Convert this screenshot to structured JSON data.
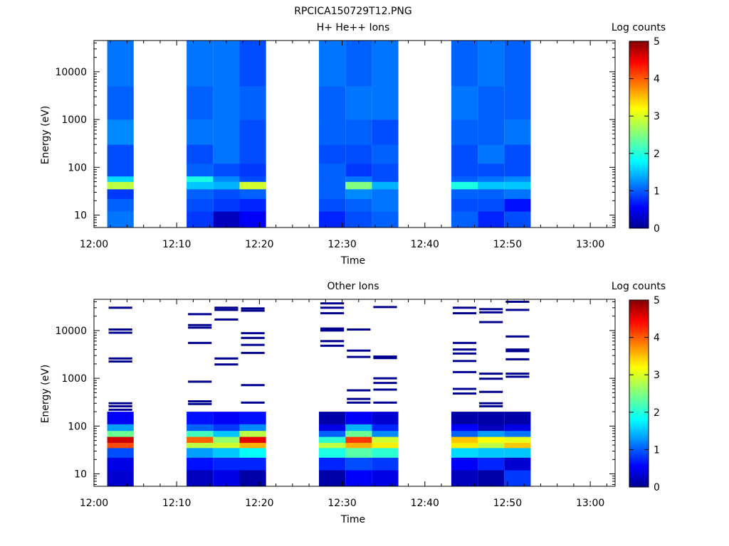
{
  "figure": {
    "title": "RPCICA150729T12.PNG"
  },
  "colorbar": {
    "label": "Log counts",
    "range": [
      0,
      5
    ],
    "ticks": [
      "0",
      "1",
      "2",
      "3",
      "4",
      "5"
    ],
    "colormap": "jet"
  },
  "axes": {
    "xlabel": "Time",
    "ylabel": "Energy (eV)",
    "x_range_minutes": [
      0,
      63
    ],
    "x_ticks": [
      {
        "minute": 0,
        "label": "12:00"
      },
      {
        "minute": 10,
        "label": "12:10"
      },
      {
        "minute": 20,
        "label": "12:20"
      },
      {
        "minute": 30,
        "label": "12:30"
      },
      {
        "minute": 40,
        "label": "12:40"
      },
      {
        "minute": 50,
        "label": "12:50"
      },
      {
        "minute": 60,
        "label": "13:00"
      }
    ],
    "y_scale": "log",
    "y_range_eV": [
      5.5,
      45000
    ],
    "y_ticks": [
      {
        "value": 10,
        "label": "10"
      },
      {
        "value": 100,
        "label": "100"
      },
      {
        "value": 1000,
        "label": "1000"
      },
      {
        "value": 10000,
        "label": "10000"
      }
    ]
  },
  "chart_data": [
    {
      "type": "heatmap",
      "title": "H+ He++ Ions",
      "xlabel": "Time",
      "ylabel": "Energy (eV)",
      "colorbar_label": "Log counts",
      "value_range": [
        0,
        5
      ],
      "columns_minutes": [
        [
          1.6,
          4.8
        ],
        [
          11.2,
          14.4
        ],
        [
          14.4,
          17.6
        ],
        [
          17.6,
          20.8
        ],
        [
          27.2,
          30.4
        ],
        [
          30.4,
          33.6
        ],
        [
          33.6,
          36.8
        ],
        [
          43.2,
          46.4
        ],
        [
          46.4,
          49.6
        ],
        [
          49.6,
          52.8
        ]
      ],
      "energy_bins_eV": [
        [
          5.5,
          12
        ],
        [
          12,
          22
        ],
        [
          22,
          35
        ],
        [
          35,
          50
        ],
        [
          50,
          65
        ],
        [
          65,
          120
        ],
        [
          120,
          300
        ],
        [
          300,
          1000
        ],
        [
          1000,
          5000
        ],
        [
          5000,
          45000
        ]
      ],
      "values": [
        [
          1.2,
          1.1,
          0.9,
          2.8,
          1.7,
          1.0,
          1.0,
          1.3,
          1.1,
          1.2
        ],
        [
          0.9,
          1.0,
          1.1,
          1.6,
          2.0,
          1.1,
          1.0,
          1.2,
          1.1,
          1.2
        ],
        [
          0.3,
          0.9,
          1.0,
          1.5,
          1.3,
          1.0,
          1.2,
          1.2,
          1.2,
          1.2
        ],
        [
          0.6,
          0.8,
          1.1,
          2.9,
          1.0,
          0.9,
          1.0,
          1.0,
          1.1,
          1.0
        ],
        [
          0.8,
          1.0,
          1.1,
          1.1,
          1.1,
          1.1,
          1.0,
          1.1,
          1.1,
          1.2
        ],
        [
          1.0,
          1.1,
          1.3,
          2.5,
          1.2,
          0.9,
          1.0,
          1.1,
          1.2,
          1.1
        ],
        [
          1.1,
          1.2,
          1.2,
          1.5,
          1.0,
          1.0,
          1.1,
          1.0,
          1.2,
          1.2
        ],
        [
          1.1,
          1.0,
          1.1,
          2.0,
          1.1,
          1.0,
          1.0,
          1.1,
          1.2,
          1.1
        ],
        [
          0.8,
          1.0,
          1.1,
          1.6,
          1.2,
          1.0,
          1.2,
          1.1,
          1.1,
          1.2
        ],
        [
          1.0,
          0.7,
          1.2,
          1.6,
          1.3,
          1.0,
          1.0,
          1.2,
          1.1,
          1.1
        ]
      ]
    },
    {
      "type": "heatmap",
      "title": "Other Ions",
      "xlabel": "Time",
      "ylabel": "Energy (eV)",
      "colorbar_label": "Log counts",
      "value_range": [
        0,
        5
      ],
      "columns_minutes": [
        [
          1.6,
          4.8
        ],
        [
          11.2,
          14.4
        ],
        [
          14.4,
          17.6
        ],
        [
          17.6,
          20.8
        ],
        [
          27.2,
          30.4
        ],
        [
          30.4,
          33.6
        ],
        [
          33.6,
          36.8
        ],
        [
          43.2,
          46.4
        ],
        [
          46.4,
          49.6
        ],
        [
          49.6,
          52.8
        ]
      ],
      "energy_bins_eV": [
        [
          5.5,
          12
        ],
        [
          12,
          22
        ],
        [
          22,
          35
        ],
        [
          35,
          45
        ],
        [
          45,
          60
        ],
        [
          60,
          80
        ],
        [
          80,
          110
        ],
        [
          110,
          200
        ]
      ],
      "values": [
        [
          0.4,
          0.5,
          1.0,
          4.0,
          4.6,
          2.4,
          1.4,
          0.6
        ],
        [
          0.3,
          0.7,
          1.4,
          2.8,
          3.9,
          2.2,
          1.1,
          0.7
        ],
        [
          0.5,
          0.8,
          1.6,
          2.9,
          2.6,
          1.6,
          0.9,
          0.6
        ],
        [
          0.2,
          0.8,
          1.9,
          3.5,
          4.5,
          2.8,
          1.3,
          0.7
        ],
        [
          0.2,
          0.8,
          2.0,
          2.8,
          2.1,
          1.1,
          0.5,
          0.2
        ],
        [
          0.6,
          1.0,
          2.3,
          3.5,
          4.1,
          2.4,
          1.5,
          0.6
        ],
        [
          0.5,
          0.9,
          2.1,
          3.2,
          2.9,
          1.3,
          0.8,
          0.4
        ],
        [
          0.3,
          0.6,
          1.7,
          3.2,
          3.4,
          1.1,
          0.6,
          0.2
        ],
        [
          0.2,
          0.8,
          1.6,
          2.8,
          3.1,
          1.4,
          0.3,
          0.2
        ],
        [
          0.9,
          0.4,
          1.6,
          3.4,
          3.0,
          1.2,
          0.5,
          0.2
        ]
      ],
      "sparse_lines_eV": [
        {
          "column": 0,
          "energies": [
            30000,
            10500,
            9000,
            2600,
            2250,
            300,
            260,
            220
          ]
        },
        {
          "column": 1,
          "energies": [
            22000,
            13000,
            11500,
            5500,
            850,
            330,
            290
          ]
        },
        {
          "column": 2,
          "energies": [
            30000,
            27000,
            17000,
            2600,
            1950
          ]
        },
        {
          "column": 3,
          "energies": [
            29000,
            26000,
            8800,
            7000,
            5000,
            3400,
            720,
            310
          ]
        },
        {
          "column": 4,
          "energies": [
            37000,
            30000,
            23000,
            11000,
            10000,
            6000,
            4800
          ]
        },
        {
          "column": 5,
          "energies": [
            10500,
            3800,
            2800,
            560,
            370,
            310
          ]
        },
        {
          "column": 6,
          "energies": [
            31000,
            2850,
            2650,
            1000,
            800,
            580,
            310
          ]
        },
        {
          "column": 7,
          "energies": [
            30000,
            23000,
            5500,
            4000,
            3300,
            2300,
            1350,
            600,
            480
          ]
        },
        {
          "column": 8,
          "energies": [
            28000,
            24000,
            15000,
            1250,
            980,
            520,
            300,
            260
          ]
        },
        {
          "column": 9,
          "energies": [
            40000,
            27000,
            7500,
            4000,
            3700,
            2500,
            1250,
            1080
          ]
        }
      ]
    }
  ]
}
